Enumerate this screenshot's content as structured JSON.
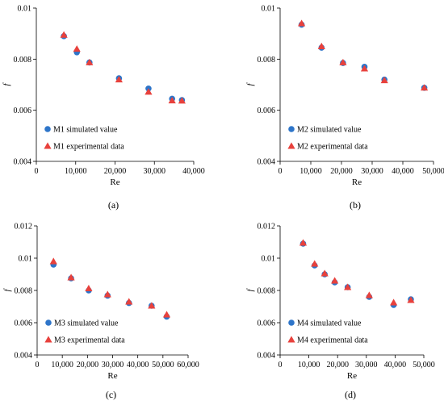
{
  "colors": {
    "simulated": "#2E75C9",
    "experimental": "#E8413C",
    "axis": "#000000"
  },
  "chart_data": [
    {
      "type": "scatter",
      "caption": "(a)",
      "xlabel": "Re",
      "ylabel": "f",
      "xlim": [
        0,
        40000
      ],
      "ylim": [
        0.004,
        0.01
      ],
      "xticks": [
        0,
        10000,
        20000,
        30000,
        40000
      ],
      "xtick_labels": [
        "0",
        "10,000",
        "20,000",
        "30,000",
        "40,000"
      ],
      "yticks": [
        0.004,
        0.006,
        0.008,
        0.01
      ],
      "ytick_labels": [
        "0.004",
        "0.006",
        "0.008",
        "0.01"
      ],
      "legend_position": "bottom-left",
      "series": [
        {
          "name": "M1 simulated value",
          "marker": "circle",
          "x": [
            7000,
            10300,
            13500,
            21000,
            28500,
            34500,
            37000
          ],
          "y": [
            0.0089,
            0.00827,
            0.00787,
            0.00725,
            0.00685,
            0.00645,
            0.0064
          ]
        },
        {
          "name": "M1 experimental data",
          "marker": "triangle",
          "x": [
            7000,
            10300,
            13500,
            21000,
            28500,
            34500,
            37000
          ],
          "y": [
            0.00895,
            0.0084,
            0.00787,
            0.0072,
            0.00672,
            0.00638,
            0.00637
          ]
        }
      ]
    },
    {
      "type": "scatter",
      "caption": "(b)",
      "xlabel": "Re",
      "ylabel": "f",
      "xlim": [
        0,
        50000
      ],
      "ylim": [
        0.004,
        0.01
      ],
      "xticks": [
        0,
        10000,
        20000,
        30000,
        40000,
        50000
      ],
      "xtick_labels": [
        "0",
        "10,000",
        "20,000",
        "30,000",
        "40,000",
        "50,000"
      ],
      "yticks": [
        0.004,
        0.006,
        0.008,
        0.01
      ],
      "ytick_labels": [
        "0.004",
        "0.006",
        "0.008",
        "0.01"
      ],
      "legend_position": "bottom-left",
      "series": [
        {
          "name": "M2 simulated value",
          "marker": "circle",
          "x": [
            7000,
            13500,
            20500,
            27500,
            34000,
            47000
          ],
          "y": [
            0.00935,
            0.00845,
            0.00785,
            0.0077,
            0.0072,
            0.00688
          ]
        },
        {
          "name": "M2 experimental data",
          "marker": "triangle",
          "x": [
            7000,
            13500,
            20500,
            27500,
            34000,
            47000
          ],
          "y": [
            0.0094,
            0.0085,
            0.00787,
            0.00763,
            0.00717,
            0.00688
          ]
        }
      ]
    },
    {
      "type": "scatter",
      "caption": "(c)",
      "xlabel": "Re",
      "ylabel": "f",
      "xlim": [
        0,
        60000
      ],
      "ylim": [
        0.004,
        0.012
      ],
      "xticks": [
        0,
        10000,
        20000,
        30000,
        40000,
        50000,
        60000
      ],
      "xtick_labels": [
        "0",
        "10,000",
        "20,000",
        "30,000",
        "40,000",
        "50,000",
        "60,000"
      ],
      "yticks": [
        0.004,
        0.006,
        0.008,
        0.01,
        0.012
      ],
      "ytick_labels": [
        "0.004",
        "0.006",
        "0.008",
        "0.01",
        "0.012"
      ],
      "legend_position": "bottom-left",
      "series": [
        {
          "name": "M3 simulated value",
          "marker": "circle",
          "x": [
            6500,
            13500,
            20500,
            28000,
            36500,
            45500,
            51500
          ],
          "y": [
            0.0096,
            0.00875,
            0.008,
            0.00768,
            0.00722,
            0.00705,
            0.00638
          ]
        },
        {
          "name": "M3 experimental data",
          "marker": "triangle",
          "x": [
            6500,
            13500,
            20500,
            28000,
            36500,
            45500,
            51500
          ],
          "y": [
            0.0098,
            0.0088,
            0.00812,
            0.00775,
            0.0073,
            0.00705,
            0.0065
          ]
        }
      ]
    },
    {
      "type": "scatter",
      "caption": "(d)",
      "xlabel": "Re",
      "ylabel": "f",
      "xlim": [
        0,
        50000
      ],
      "ylim": [
        0.004,
        0.012
      ],
      "xticks": [
        0,
        10000,
        20000,
        30000,
        40000,
        50000
      ],
      "xtick_labels": [
        "0",
        "10,000",
        "20,000",
        "30,000",
        "40,000",
        "50,000"
      ],
      "yticks": [
        0.004,
        0.006,
        0.008,
        0.01,
        0.012
      ],
      "ytick_labels": [
        "0.004",
        "0.006",
        "0.008",
        "0.01",
        "0.012"
      ],
      "legend_position": "bottom-left",
      "series": [
        {
          "name": "M4 simulated value",
          "marker": "circle",
          "x": [
            8000,
            12000,
            15500,
            19000,
            23500,
            31000,
            39500,
            45500
          ],
          "y": [
            0.0109,
            0.00955,
            0.009,
            0.0085,
            0.0082,
            0.0076,
            0.0071,
            0.00745
          ]
        },
        {
          "name": "M4 experimental data",
          "marker": "triangle",
          "x": [
            8000,
            12000,
            15500,
            19000,
            23500,
            31000,
            39500,
            45500
          ],
          "y": [
            0.01095,
            0.00965,
            0.00905,
            0.0086,
            0.0082,
            0.0077,
            0.00725,
            0.0074
          ]
        }
      ]
    }
  ]
}
